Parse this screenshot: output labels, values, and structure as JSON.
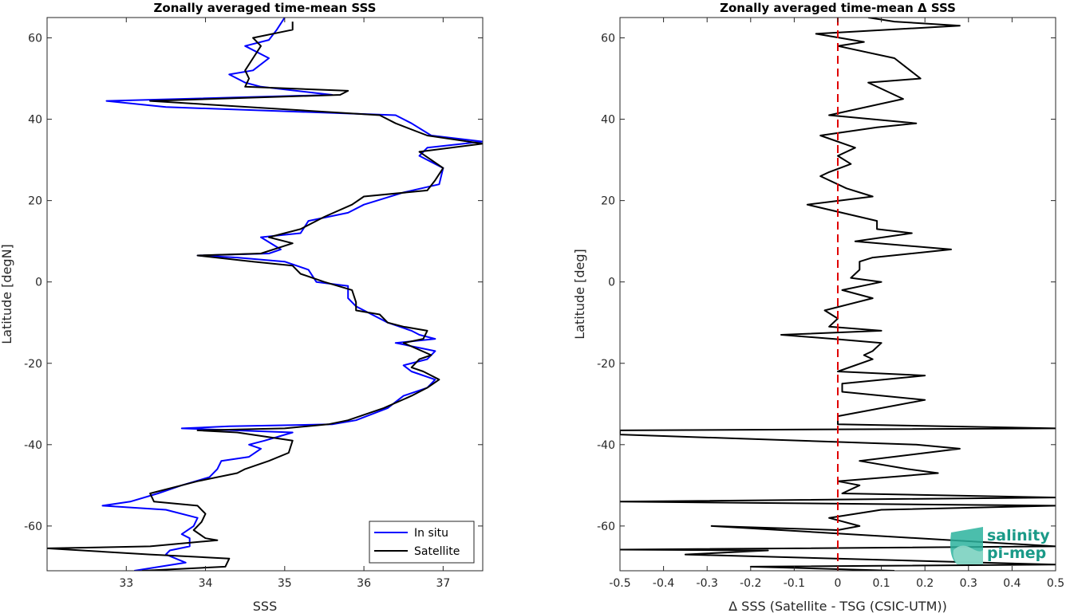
{
  "chart_data": [
    {
      "type": "line",
      "title": "Zonally averaged time-mean SSS",
      "xlabel": "SSS",
      "ylabel": "Latitude [degN]",
      "xlim": [
        32,
        37.5
      ],
      "ylim": [
        -71,
        65
      ],
      "xticks": [
        33,
        34,
        35,
        36,
        37
      ],
      "yticks": [
        -60,
        -40,
        -20,
        0,
        20,
        40,
        60
      ],
      "grid": false,
      "legend": {
        "position": "bottom-right",
        "entries": [
          "In situ",
          "Satellite"
        ]
      },
      "series": [
        {
          "name": "In situ",
          "color": "#0000ff",
          "points": [
            [
              33.1,
              -71
            ],
            [
              33.75,
              -69
            ],
            [
              33.5,
              -67
            ],
            [
              33.55,
              -66
            ],
            [
              33.8,
              -65
            ],
            [
              33.8,
              -63
            ],
            [
              33.7,
              -62
            ],
            [
              33.85,
              -60
            ],
            [
              33.9,
              -58
            ],
            [
              33.5,
              -56
            ],
            [
              32.7,
              -55
            ],
            [
              33.05,
              -54
            ],
            [
              33.4,
              -52
            ],
            [
              33.7,
              -50
            ],
            [
              34.05,
              -48
            ],
            [
              34.15,
              -46
            ],
            [
              34.2,
              -44
            ],
            [
              34.55,
              -43
            ],
            [
              34.7,
              -41
            ],
            [
              34.55,
              -40
            ],
            [
              34.75,
              -39
            ],
            [
              35.1,
              -37
            ],
            [
              33.7,
              -36
            ],
            [
              34.3,
              -35.5
            ],
            [
              35.6,
              -35
            ],
            [
              35.9,
              -34
            ],
            [
              36.3,
              -31
            ],
            [
              36.5,
              -28
            ],
            [
              36.8,
              -26
            ],
            [
              36.9,
              -24
            ],
            [
              36.6,
              -22
            ],
            [
              36.5,
              -20.5
            ],
            [
              36.8,
              -19
            ],
            [
              36.9,
              -17
            ],
            [
              36.4,
              -15
            ],
            [
              36.9,
              -14
            ],
            [
              36.7,
              -13
            ],
            [
              36.6,
              -12
            ],
            [
              36.3,
              -10
            ],
            [
              36.1,
              -8
            ],
            [
              35.9,
              -6
            ],
            [
              35.8,
              -4
            ],
            [
              35.8,
              -1
            ],
            [
              35.4,
              0
            ],
            [
              35.3,
              3
            ],
            [
              35.0,
              5
            ],
            [
              34.4,
              6
            ],
            [
              33.9,
              6.5
            ],
            [
              34.8,
              7
            ],
            [
              34.95,
              8
            ],
            [
              34.7,
              11
            ],
            [
              35.2,
              12
            ],
            [
              35.3,
              15
            ],
            [
              35.8,
              17
            ],
            [
              36.0,
              19
            ],
            [
              36.5,
              22
            ],
            [
              36.95,
              24
            ],
            [
              37.0,
              28
            ],
            [
              36.7,
              31
            ],
            [
              36.8,
              33
            ],
            [
              37.5,
              34.5
            ],
            [
              36.85,
              36
            ],
            [
              36.6,
              39
            ],
            [
              36.4,
              41
            ],
            [
              33.5,
              43
            ],
            [
              32.75,
              44.5
            ],
            [
              35.6,
              46
            ],
            [
              34.7,
              48
            ],
            [
              34.5,
              49
            ],
            [
              34.3,
              51
            ],
            [
              34.6,
              52
            ],
            [
              34.8,
              55
            ],
            [
              34.5,
              58
            ],
            [
              34.8,
              59.5
            ],
            [
              34.9,
              62
            ],
            [
              35.0,
              65
            ]
          ]
        },
        {
          "name": "Satellite",
          "color": "#000000",
          "points": [
            [
              33.2,
              -71
            ],
            [
              34.25,
              -70
            ],
            [
              34.3,
              -68
            ],
            [
              33.3,
              -67
            ],
            [
              32.0,
              -65.5
            ],
            [
              33.3,
              -65
            ],
            [
              34.15,
              -63.5
            ],
            [
              34.0,
              -63
            ],
            [
              33.85,
              -61
            ],
            [
              33.95,
              -59
            ],
            [
              34.0,
              -57
            ],
            [
              33.9,
              -55
            ],
            [
              33.35,
              -54
            ],
            [
              33.3,
              -52
            ],
            [
              33.7,
              -50
            ],
            [
              33.9,
              -49
            ],
            [
              34.4,
              -47
            ],
            [
              34.5,
              -46
            ],
            [
              34.8,
              -44
            ],
            [
              35.05,
              -42
            ],
            [
              35.1,
              -39
            ],
            [
              34.4,
              -37
            ],
            [
              33.9,
              -36.5
            ],
            [
              35.0,
              -36
            ],
            [
              35.55,
              -35
            ],
            [
              35.8,
              -34
            ],
            [
              36.25,
              -31
            ],
            [
              36.6,
              -28
            ],
            [
              36.8,
              -26
            ],
            [
              36.95,
              -24
            ],
            [
              36.75,
              -22
            ],
            [
              36.6,
              -21
            ],
            [
              36.7,
              -19
            ],
            [
              36.85,
              -18
            ],
            [
              36.5,
              -15
            ],
            [
              36.75,
              -14
            ],
            [
              36.8,
              -12
            ],
            [
              36.5,
              -11
            ],
            [
              36.3,
              -10
            ],
            [
              36.2,
              -8
            ],
            [
              35.9,
              -7
            ],
            [
              35.9,
              -5
            ],
            [
              35.85,
              -2
            ],
            [
              35.5,
              0
            ],
            [
              35.2,
              2
            ],
            [
              35.1,
              4
            ],
            [
              34.6,
              5
            ],
            [
              33.9,
              6.5
            ],
            [
              34.7,
              7
            ],
            [
              35.1,
              9.5
            ],
            [
              34.8,
              11
            ],
            [
              35.2,
              13
            ],
            [
              35.5,
              16
            ],
            [
              35.85,
              19
            ],
            [
              36.0,
              21
            ],
            [
              36.8,
              22.5
            ],
            [
              36.9,
              25
            ],
            [
              37.0,
              28
            ],
            [
              36.7,
              32
            ],
            [
              37.5,
              34
            ],
            [
              36.8,
              36
            ],
            [
              36.4,
              39
            ],
            [
              36.2,
              41
            ],
            [
              33.3,
              44.5
            ],
            [
              35.7,
              46
            ],
            [
              35.8,
              47
            ],
            [
              34.5,
              48
            ],
            [
              34.55,
              50
            ],
            [
              34.5,
              52
            ],
            [
              34.6,
              55
            ],
            [
              34.7,
              58
            ],
            [
              34.6,
              60
            ],
            [
              35.1,
              62
            ],
            [
              35.1,
              64
            ]
          ]
        }
      ]
    },
    {
      "type": "line",
      "title": "Zonally averaged time-mean Δ SSS",
      "xlabel": "Δ SSS (Satellite - TSG (CSIC-UTM))",
      "ylabel": "Latitude [deg]",
      "xlim": [
        -0.5,
        0.5
      ],
      "ylim": [
        -71,
        65
      ],
      "xticks": [
        -0.5,
        -0.4,
        -0.3,
        -0.2,
        -0.1,
        0,
        0.1,
        0.2,
        0.3,
        0.4,
        0.5
      ],
      "xtick_labels": [
        "-0.5",
        "-0.4",
        "-0.3",
        "-0.2",
        "-0.1",
        "0",
        "0.1",
        "0.2",
        "0.3",
        "0.4",
        "0.5"
      ],
      "yticks": [
        -60,
        -40,
        -20,
        0,
        20,
        40,
        60
      ],
      "grid": false,
      "reference_line": {
        "x": 0,
        "color": "#e00000",
        "style": "dashed"
      },
      "series": [
        {
          "color": "#000000",
          "points": [
            [
              0.13,
              -71
            ],
            [
              -0.2,
              -70
            ],
            [
              0.5,
              -69.5
            ],
            [
              -0.35,
              -67
            ],
            [
              -0.16,
              -66
            ],
            [
              -0.5,
              -65.8
            ],
            [
              0.5,
              -65
            ],
            [
              -0.29,
              -60
            ],
            [
              0.0,
              -61
            ],
            [
              0.05,
              -60
            ],
            [
              -0.02,
              -58
            ],
            [
              0.1,
              -56
            ],
            [
              0.5,
              -55
            ],
            [
              -0.5,
              -54
            ],
            [
              0.5,
              -53
            ],
            [
              0.01,
              -52
            ],
            [
              0.05,
              -50
            ],
            [
              0.0,
              -49
            ],
            [
              0.23,
              -47
            ],
            [
              0.16,
              -46
            ],
            [
              0.05,
              -44
            ],
            [
              0.28,
              -41
            ],
            [
              0.18,
              -40
            ],
            [
              -0.5,
              -37.5
            ],
            [
              -0.5,
              -36.5
            ],
            [
              0.5,
              -36
            ],
            [
              0.0,
              -35
            ],
            [
              0.0,
              -33
            ],
            [
              0.2,
              -29
            ],
            [
              0.01,
              -27
            ],
            [
              0.01,
              -25
            ],
            [
              0.2,
              -23
            ],
            [
              0.0,
              -22
            ],
            [
              0.08,
              -19
            ],
            [
              0.06,
              -18
            ],
            [
              0.08,
              -17
            ],
            [
              0.1,
              -15
            ],
            [
              -0.01,
              -14
            ],
            [
              -0.13,
              -13
            ],
            [
              0.1,
              -12
            ],
            [
              -0.02,
              -11
            ],
            [
              0.0,
              -9
            ],
            [
              -0.03,
              -7
            ],
            [
              0.08,
              -4
            ],
            [
              0.01,
              -2
            ],
            [
              0.1,
              0
            ],
            [
              0.03,
              1
            ],
            [
              0.05,
              3
            ],
            [
              0.05,
              5
            ],
            [
              0.08,
              6
            ],
            [
              0.26,
              8
            ],
            [
              0.04,
              10
            ],
            [
              0.17,
              12
            ],
            [
              0.09,
              13
            ],
            [
              0.09,
              15
            ],
            [
              -0.07,
              19
            ],
            [
              0.08,
              21
            ],
            [
              0.02,
              23
            ],
            [
              -0.04,
              26
            ],
            [
              -0.02,
              27
            ],
            [
              0.03,
              29
            ],
            [
              0.0,
              31
            ],
            [
              0.04,
              33
            ],
            [
              -0.04,
              36
            ],
            [
              0.09,
              38
            ],
            [
              0.18,
              39
            ],
            [
              -0.02,
              41
            ],
            [
              0.15,
              45
            ],
            [
              0.07,
              49
            ],
            [
              0.19,
              50
            ],
            [
              0.13,
              55
            ],
            [
              0.0,
              58
            ],
            [
              0.06,
              59
            ],
            [
              -0.05,
              61
            ],
            [
              0.28,
              63
            ],
            [
              0.13,
              64
            ],
            [
              0.07,
              65
            ]
          ]
        }
      ]
    }
  ],
  "logo": {
    "line1": "salinity",
    "line2": "pi-mep"
  }
}
